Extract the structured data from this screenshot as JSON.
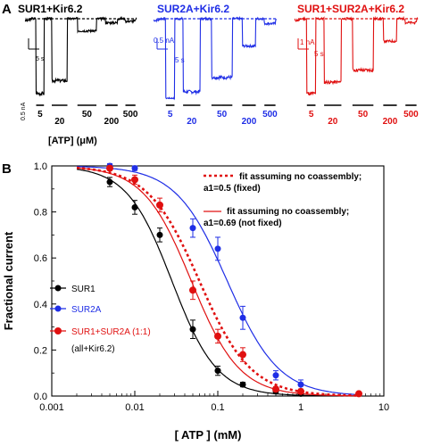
{
  "panel_a": {
    "letter": "A",
    "traces": [
      {
        "title": "SUR1+Kir6.2",
        "color": "#000000",
        "scale_current": "0.5 nA",
        "scale_time": "5 s",
        "levels": [
          0.07,
          0.23,
          0.85,
          0.95,
          0.97
        ]
      },
      {
        "title": "SUR2A+Kir6.2",
        "color": "#1f2ee6",
        "scale_current": "0.5 nA",
        "scale_time": "5 s",
        "levels": [
          0.01,
          0.09,
          0.27,
          0.66,
          0.94
        ]
      },
      {
        "title": "SUR1+SUR2A+Kir6.2",
        "color": "#e01010",
        "scale_current": "1 nA",
        "scale_time": "5 s",
        "levels": [
          0.07,
          0.21,
          0.36,
          0.72,
          0.95
        ]
      }
    ],
    "concentrations": [
      "5",
      "20",
      "50",
      "200",
      "500"
    ],
    "atp_label": "[ATP] (μM)"
  },
  "panel_b": {
    "letter": "B",
    "legend": [
      {
        "label": "SUR1",
        "color": "#000000"
      },
      {
        "label": "SUR2A",
        "color": "#1f2ee6"
      },
      {
        "label": "SUR1+SUR2A (1:1)",
        "color": "#e01010"
      }
    ],
    "legend_note": "(all+Kir6.2)",
    "fit_notes": [
      {
        "line1": "fit assuming no coassembly;",
        "line2": "a1=0.5 (fixed)",
        "style": "dotted"
      },
      {
        "line1": "fit assuming no coassembly;",
        "line2": "a1=0.69 (not fixed)",
        "style": "solid"
      }
    ]
  },
  "chart_data": {
    "type": "scatter",
    "xlabel": "[ ATP ]  (mM)",
    "ylabel": "Fractional current",
    "xscale": "log",
    "xlim": [
      0.001,
      10
    ],
    "ylim": [
      0,
      1.0
    ],
    "x_ticks": [
      "0.001",
      "0.01",
      "0.1",
      "1",
      "10"
    ],
    "y_ticks": [
      "0.0",
      "0.2",
      "0.4",
      "0.6",
      "0.8",
      "1.0"
    ],
    "grid": false,
    "legend_position": "bottom-left",
    "series": [
      {
        "name": "SUR1",
        "color": "#000000",
        "x": [
          0.005,
          0.01,
          0.02,
          0.05,
          0.1,
          0.2,
          0.5,
          1,
          5
        ],
        "y": [
          0.93,
          0.82,
          0.7,
          0.29,
          0.11,
          0.05,
          0.02,
          0.01,
          0.01
        ],
        "err": [
          0.02,
          0.03,
          0.03,
          0.04,
          0.02,
          0.01,
          0.01,
          0.005,
          0.005
        ],
        "fit": {
          "style": "solid",
          "ic50": 0.028,
          "hill": 1.6
        }
      },
      {
        "name": "SUR2A",
        "color": "#1f2ee6",
        "x": [
          0.005,
          0.01,
          0.05,
          0.1,
          0.2,
          0.5,
          1,
          5
        ],
        "y": [
          1.0,
          0.99,
          0.73,
          0.64,
          0.34,
          0.09,
          0.05,
          0.01
        ],
        "err": [
          0.01,
          0.01,
          0.04,
          0.05,
          0.05,
          0.02,
          0.02,
          0.005
        ],
        "fit": {
          "style": "solid",
          "ic50": 0.13,
          "hill": 1.4
        }
      },
      {
        "name": "SUR1+SUR2A (1:1)",
        "color": "#e01010",
        "x": [
          0.005,
          0.01,
          0.02,
          0.05,
          0.1,
          0.2,
          0.5,
          1,
          5
        ],
        "y": [
          0.99,
          0.94,
          0.83,
          0.46,
          0.26,
          0.18,
          0.03,
          0.02,
          0.01
        ],
        "err": [
          0.01,
          0.02,
          0.03,
          0.04,
          0.03,
          0.03,
          0.01,
          0.01,
          0.005
        ],
        "fits": [
          {
            "label": "a1=0.5 (fixed)",
            "style": "dotted",
            "ic50": 0.06,
            "hill": 1.4
          },
          {
            "label": "a1=0.69 (not fixed)",
            "style": "solid",
            "ic50": 0.048,
            "hill": 1.5
          }
        ]
      }
    ]
  }
}
